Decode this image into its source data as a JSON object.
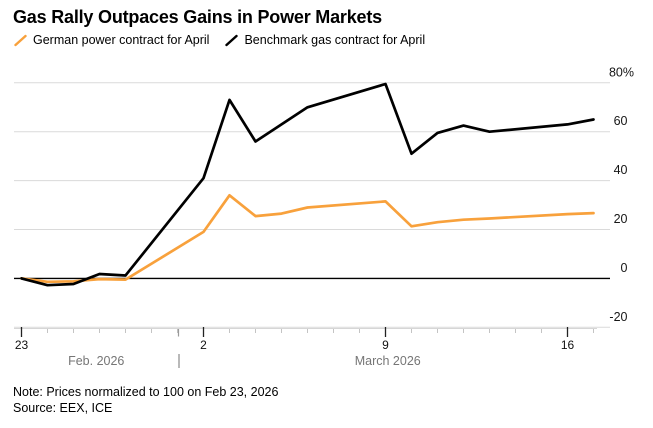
{
  "header": {
    "title": "Gas Rally Outpaces Gains in Power Markets"
  },
  "legend": [
    {
      "label": "German power contract for April",
      "color": "#F8A13C"
    },
    {
      "label": "Benchmark gas contract for April",
      "color": "#000000"
    }
  ],
  "footer": {
    "note": "Note: Prices normalized to 100 on Feb 23, 2026",
    "source": "Source: EEX, ICE"
  },
  "chart_data": {
    "type": "line",
    "title": "Gas Rally Outpaces Gains in Power Markets",
    "unit": "%",
    "grid": "horizontal",
    "ylim": [
      -20,
      80
    ],
    "x_dates": [
      "Feb 23",
      "Feb 24",
      "Feb 25",
      "Feb 26",
      "Feb 27",
      "Mar 2",
      "Mar 3",
      "Mar 4",
      "Mar 5",
      "Mar 6",
      "Mar 9",
      "Mar 10",
      "Mar 11",
      "Mar 12",
      "Mar 13",
      "Mar 16",
      "Mar 17"
    ],
    "day_offsets": [
      0,
      1,
      2,
      3,
      4,
      7,
      8,
      9,
      10,
      11,
      14,
      15,
      16,
      17,
      18,
      21,
      22
    ],
    "series": [
      {
        "name": "German power contract for April",
        "color": "#F8A13C",
        "values": [
          0,
          -1.4,
          -1.2,
          -0.3,
          -0.5,
          19,
          34,
          25.5,
          26.5,
          29,
          31.5,
          21.3,
          23,
          24,
          24.5,
          26.3,
          26.7
        ]
      },
      {
        "name": "Benchmark gas contract for April",
        "color": "#000000",
        "values": [
          0,
          -2.8,
          -2.3,
          1.8,
          1.2,
          41,
          73,
          56,
          63,
          70,
          79.5,
          51,
          59.5,
          62.5,
          60,
          63,
          65
        ]
      }
    ],
    "y_axis_labels": [
      {
        "text": "80%",
        "value": 80
      },
      {
        "text": "60",
        "value": 60
      },
      {
        "text": "40",
        "value": 40
      },
      {
        "text": "20",
        "value": 20
      },
      {
        "text": "0",
        "value": 0
      },
      {
        "text": "-20",
        "value": -20
      }
    ],
    "x_major_ticks": [
      {
        "label": "23",
        "day": 0
      },
      {
        "label": "2",
        "day": 7
      },
      {
        "label": "9",
        "day": 14
      },
      {
        "label": "16",
        "day": 21
      }
    ],
    "months": [
      {
        "label": "Feb. 2026"
      },
      {
        "label": "March 2026"
      }
    ]
  }
}
